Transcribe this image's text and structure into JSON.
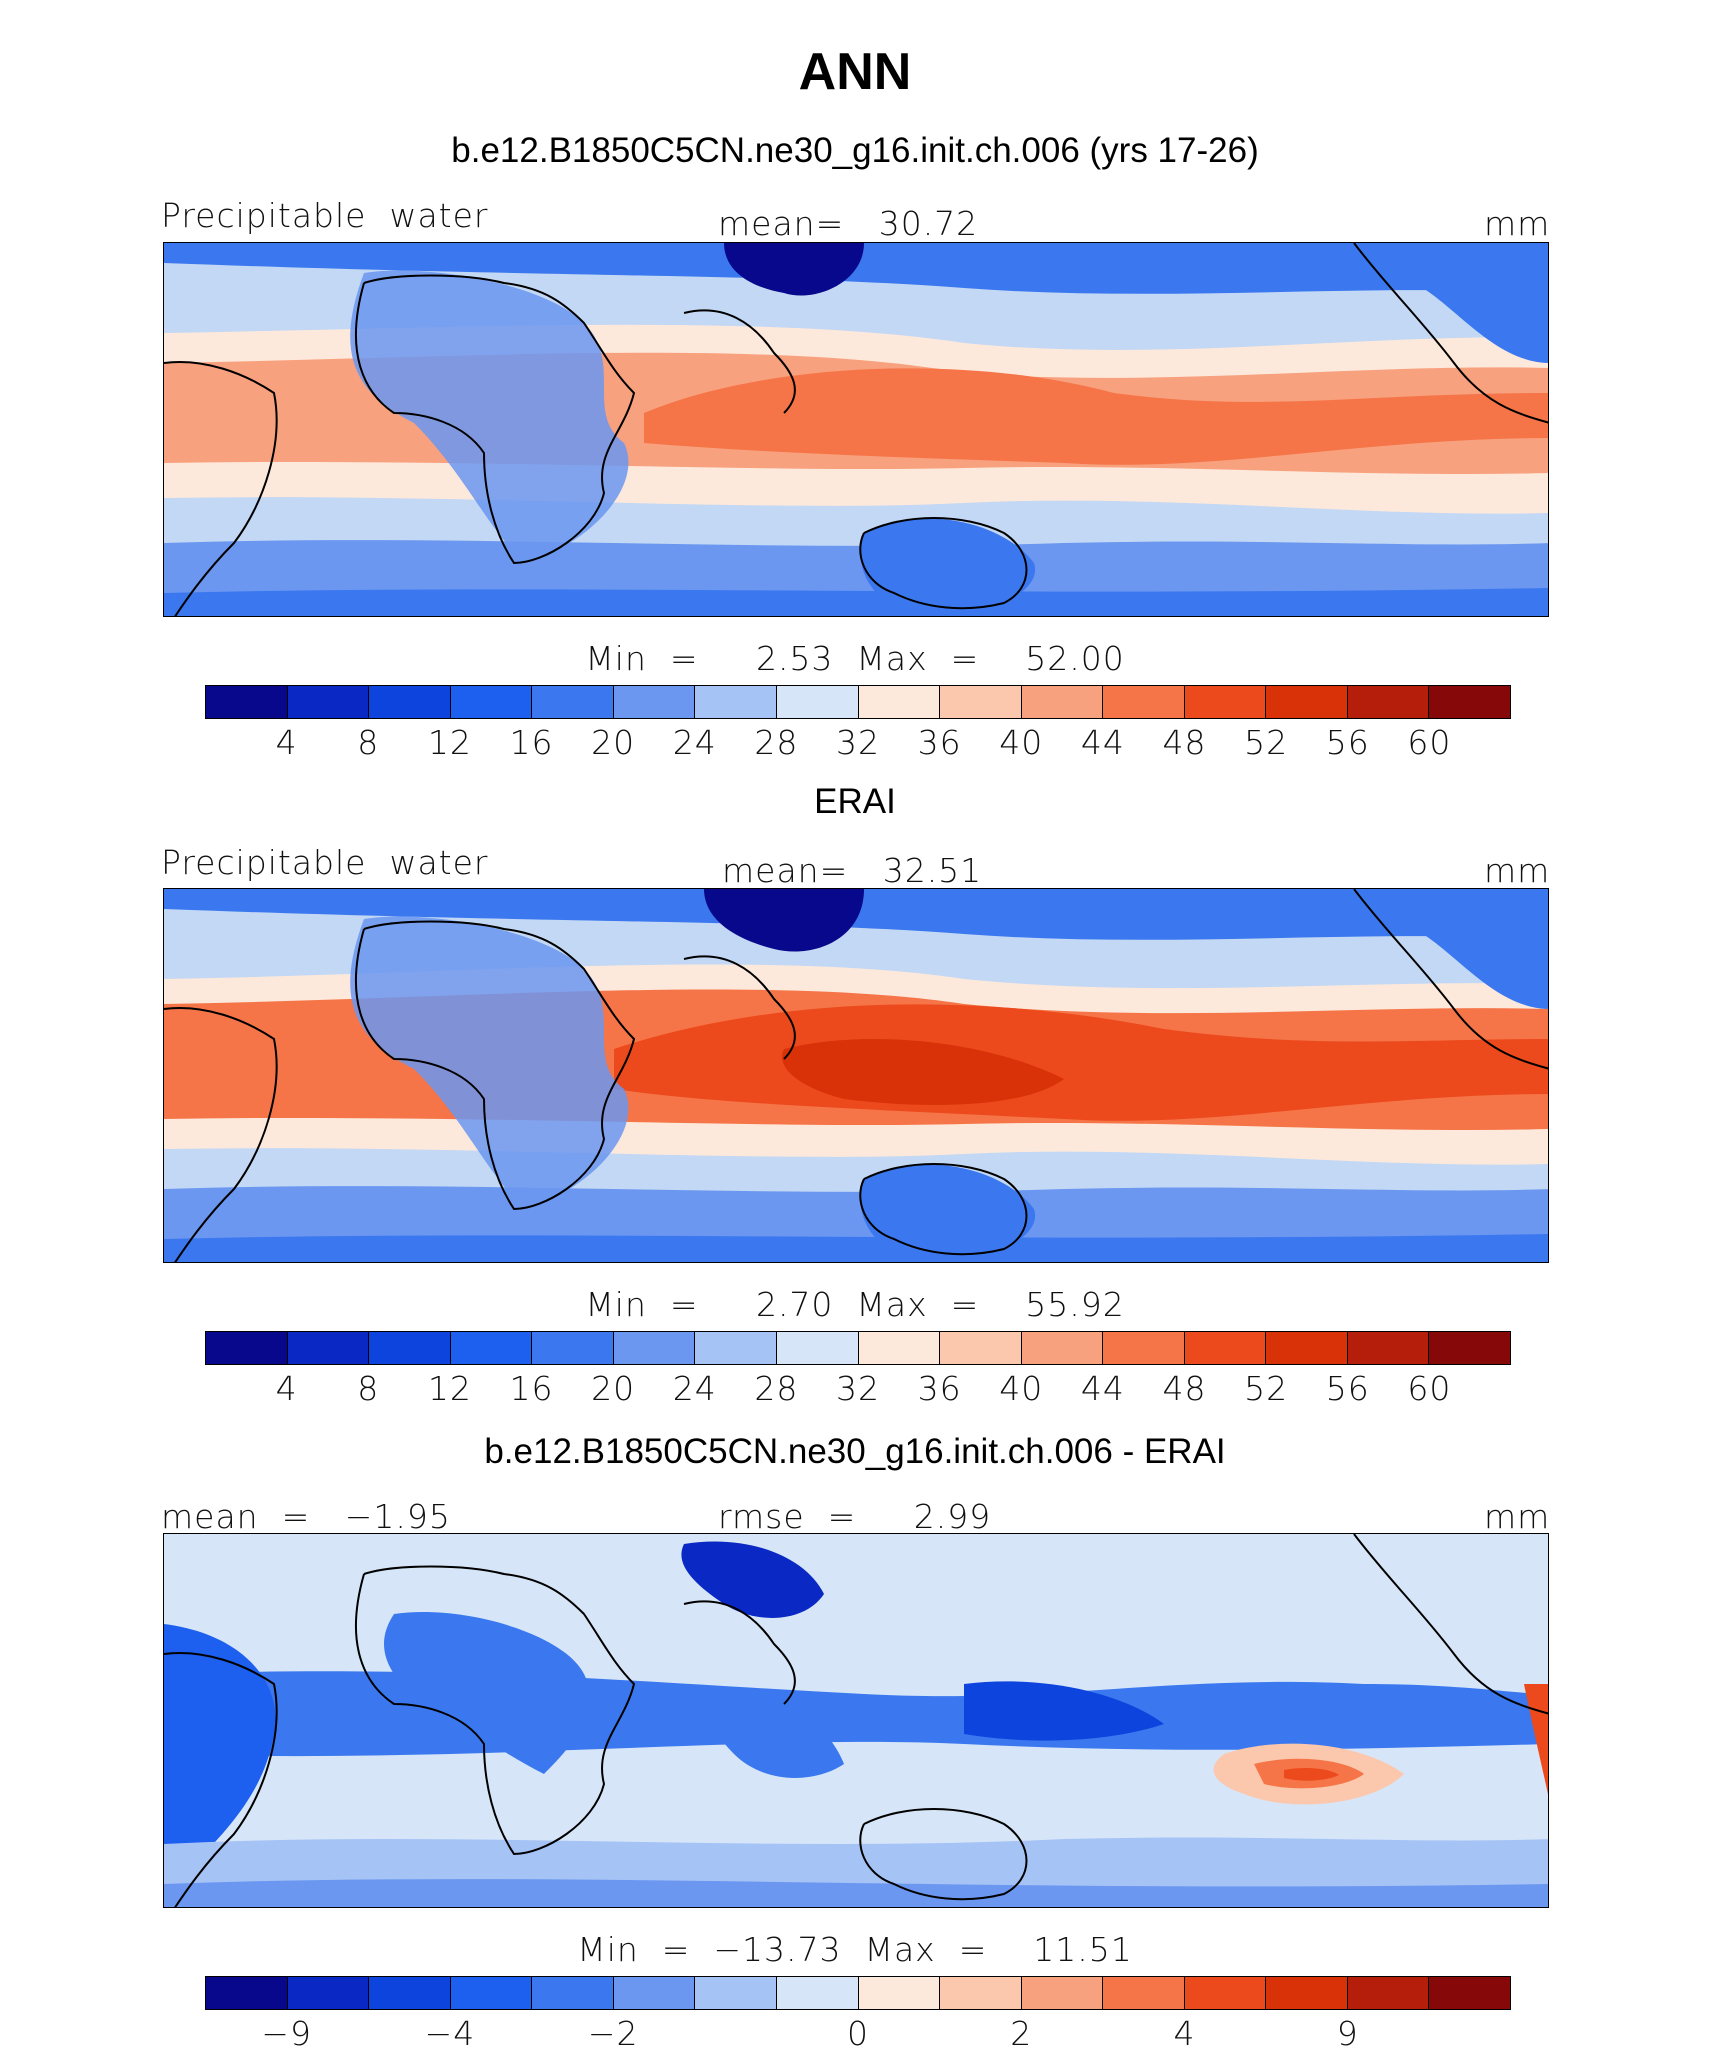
{
  "season": "ANN",
  "colors": [
    "#08088c",
    "#0a28c3",
    "#0d44dd",
    "#1d5fef",
    "#3b78ef",
    "#6b97f0",
    "#a6c3f5",
    "#d6e6f8",
    "#fde9db",
    "#fbc8ad",
    "#f8a17e",
    "#f57548",
    "#ec4a1c",
    "#d93209",
    "#b51e0a",
    "#870808"
  ],
  "panels": [
    {
      "id": "model",
      "title": "b.e12.B1850C5CN.ne30_g16.init.ch.006 (yrs 17-26)",
      "left_label": "Precipitable  water",
      "center_label": "mean=   30.72",
      "units": "mm",
      "minmax": "Min  =     2.53  Max  =    52.00",
      "ticks": [
        "4",
        "8",
        "12",
        "16",
        "20",
        "24",
        "28",
        "32",
        "36",
        "40",
        "44",
        "48",
        "52",
        "56",
        "60"
      ]
    },
    {
      "id": "obs",
      "title": "ERAI",
      "left_label": "Precipitable  water",
      "center_label": "mean=   32.51",
      "units": "mm",
      "minmax": "Min  =     2.70  Max  =    55.92",
      "ticks": [
        "4",
        "8",
        "12",
        "16",
        "20",
        "24",
        "28",
        "32",
        "36",
        "40",
        "44",
        "48",
        "52",
        "56",
        "60"
      ]
    },
    {
      "id": "diff",
      "title": "b.e12.B1850C5CN.ne30_g16.init.ch.006 - ERAI",
      "left_label": "mean  =   −1.95",
      "center_label": "rmse  =     2.99",
      "units": "mm",
      "minmax": "Min  =  −13.73  Max  =    11.51",
      "ticks": [
        "−9",
        "−4",
        "−2",
        "0",
        "2",
        "4",
        "9"
      ]
    }
  ]
}
